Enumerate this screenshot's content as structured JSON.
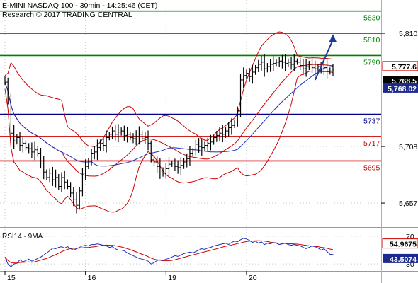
{
  "chart_data": {
    "type": "candlestick",
    "header": {
      "title": "E-MINI NASDAQ 100 - 30min - 14:25:46 (CET)",
      "source": "Research © 2017 TRADING CENTRAL"
    },
    "colors": {
      "candle": "#000000",
      "bollinger": "#cc0000",
      "moving_average": "#1f2fbf",
      "resistance": "#008000",
      "pivot": "#00008b",
      "support": "#cc0000",
      "arrow": "#1f3a93",
      "rsi": "#1f2fbf",
      "rsi_ma": "#cc0000"
    },
    "x_axis": {
      "labels": [
        {
          "text": "15",
          "index": 0
        },
        {
          "text": "16",
          "index": 27
        },
        {
          "text": "19",
          "index": 54
        },
        {
          "text": "20",
          "index": 81
        }
      ]
    },
    "y_axis": {
      "ylim": [
        5636,
        5840
      ],
      "ticks": [
        "5,810",
        "5,708",
        "5,657"
      ],
      "tick_values": [
        5810,
        5708,
        5657
      ]
    },
    "levels": [
      {
        "label": "5830",
        "value": 5830,
        "kind": "resistance"
      },
      {
        "label": "5810",
        "value": 5810,
        "kind": "resistance"
      },
      {
        "label": "5790",
        "value": 5790,
        "kind": "resistance"
      },
      {
        "label": "5737",
        "value": 5737,
        "kind": "pivot"
      },
      {
        "label": "5717",
        "value": 5717,
        "kind": "support"
      },
      {
        "label": "5695",
        "value": 5695,
        "kind": "support"
      }
    ],
    "price_tags": [
      {
        "label": "5,777.6",
        "value": 5777.6,
        "style": "red"
      },
      {
        "label": "5,768.5",
        "value": 5768.5,
        "style": "black"
      },
      {
        "label": "5,768.02",
        "value": 5768.02,
        "style": "blue"
      }
    ],
    "arrow": {
      "from_index": 104,
      "from_value": 5768,
      "to_index": 110,
      "to_value": 5808
    },
    "close": [
      5766,
      5750,
      5720,
      5713,
      5716,
      5709,
      5711,
      5707,
      5706,
      5703,
      5705,
      5702,
      5693,
      5685,
      5680,
      5684,
      5678,
      5680,
      5672,
      5680,
      5676,
      5672,
      5666,
      5660,
      5655,
      5668,
      5684,
      5690,
      5695,
      5702,
      5703,
      5707,
      5711,
      5709,
      5716,
      5719,
      5722,
      5719,
      5721,
      5722,
      5718,
      5719,
      5716,
      5715,
      5717,
      5719,
      5715,
      5716,
      5711,
      5696,
      5694,
      5690,
      5686,
      5684,
      5688,
      5692,
      5693,
      5690,
      5689,
      5691,
      5694,
      5697,
      5702,
      5704,
      5710,
      5708,
      5707,
      5709,
      5711,
      5712,
      5716,
      5718,
      5720,
      5719,
      5722,
      5725,
      5727,
      5730,
      5740,
      5768,
      5772,
      5774,
      5771,
      5775,
      5779,
      5782,
      5784,
      5778,
      5780,
      5782,
      5783,
      5784,
      5785,
      5784,
      5783,
      5784,
      5782,
      5785,
      5784,
      5781,
      5778,
      5780,
      5782,
      5779,
      5778,
      5780,
      5778,
      5779,
      5776,
      5776,
      5777.6
    ],
    "rsi": {
      "label": "RSI14 - 9MA",
      "ylim": [
        20,
        80
      ],
      "ticks": [
        "70",
        "30"
      ],
      "tick_values": [
        70,
        30
      ],
      "tags": [
        {
          "label": "54.9675",
          "value": 54.9675,
          "style": "red"
        },
        {
          "label": "43.5074",
          "value": 43.5074,
          "style": "blue"
        }
      ],
      "values": [
        40,
        30,
        26,
        30,
        31,
        36,
        33,
        35,
        37,
        34,
        36,
        38,
        40,
        43,
        46,
        49,
        53,
        52,
        54,
        55,
        53,
        55,
        52,
        50,
        52,
        54,
        56,
        57,
        56,
        58,
        58,
        59,
        58,
        57,
        56,
        54,
        55,
        52,
        50,
        50,
        49,
        46,
        44,
        42,
        40,
        38,
        37,
        36,
        34,
        30,
        32,
        35,
        36,
        35,
        37,
        38,
        40,
        42,
        41,
        43,
        45,
        46,
        47,
        46,
        48,
        50,
        52,
        51,
        53,
        54,
        56,
        57,
        58,
        59,
        60,
        58,
        61,
        63,
        62,
        65,
        67,
        66,
        64,
        61,
        63,
        60,
        62,
        58,
        60,
        59,
        61,
        60,
        58,
        59,
        60,
        58,
        57,
        58,
        57,
        56,
        54,
        52,
        54,
        56,
        55,
        53,
        50,
        52,
        48,
        44,
        43.5074
      ]
    }
  }
}
